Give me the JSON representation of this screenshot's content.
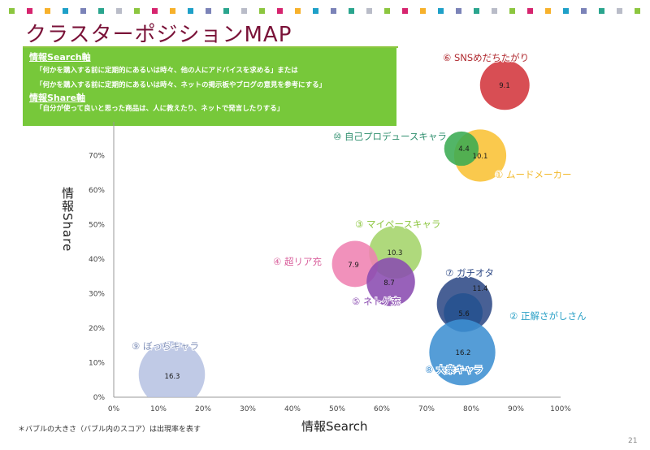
{
  "page": {
    "title": "クラスターポジションMAP",
    "page_number": "21",
    "footnote": "＊バブルの大きさ（バブル内のスコア）は出現率を表す",
    "decor_dot_colors": [
      "#8cc63f",
      "#d6246e",
      "#f7b12b",
      "#1ea0c8",
      "#7b83b8",
      "#2aa58e",
      "#b9bcc8"
    ]
  },
  "definitions": {
    "search_axis_title": "情報Search軸",
    "search_axis_lines": [
      "「何かを購入する前に定期的にあるいは時々、他の人にアドバイスを求める」または",
      "「何かを購入する前に定期的にあるいは時々、ネットの掲示板やブログの意見を参考にする」"
    ],
    "share_axis_title": "情報Share軸",
    "share_axis_lines": [
      "「自分が使って良いと思った商品は、人に教えたり、ネットで発言したりする」"
    ]
  },
  "chart_data": {
    "type": "bubble",
    "title": "クラスターポジションMAP",
    "xlabel": "情報Search",
    "ylabel": "情報Share",
    "xlim": [
      0,
      100
    ],
    "ylim": [
      0,
      80
    ],
    "x_ticks": [
      "0%",
      "10%",
      "20%",
      "30%",
      "40%",
      "50%",
      "60%",
      "70%",
      "80%",
      "90%",
      "100%"
    ],
    "y_ticks": [
      "0%",
      "10%",
      "20%",
      "30%",
      "40%",
      "50%",
      "60%",
      "70%"
    ],
    "size_meaning": "出現率 (%)",
    "series": [
      {
        "id": "⑥",
        "name": "SNSめだちたがり",
        "x": 87.5,
        "y": 90.4,
        "size": 9.1,
        "color": "#d3363c",
        "label_color": "#b02a30"
      },
      {
        "id": "①",
        "name": "ムードメーカー",
        "x": 82.0,
        "y": 70.0,
        "size": 10.1,
        "color": "#f9c234",
        "label_color": "#f2b92a"
      },
      {
        "id": "⑩",
        "name": "自己プロデュースキャラ",
        "x": 77.8,
        "y": 72.0,
        "size": 4.4,
        "color": "#3aab52",
        "label_color": "#2f8f6e"
      },
      {
        "id": "③",
        "name": "マイペースキャラ",
        "x": 63.0,
        "y": 42.0,
        "size": 10.3,
        "color": "#a4d46a",
        "label_color": "#8cc63f"
      },
      {
        "id": "④",
        "name": "超リア充",
        "x": 54.0,
        "y": 38.6,
        "size": 7.9,
        "color": "#ef82b2",
        "label_color": "#d9609c"
      },
      {
        "id": "⑤",
        "name": "ネトゲ充",
        "x": 62.0,
        "y": 33.4,
        "size": 8.7,
        "color": "#8a4bb0",
        "label_color": "#8a4bb0"
      },
      {
        "id": "⑦",
        "name": "ガチオタ",
        "x": 78.5,
        "y": 27.0,
        "size": 11.4,
        "color": "#2f4a86",
        "label_color": "#2f4a86"
      },
      {
        "id": "②",
        "name": "正解さがしさん",
        "x": 78.2,
        "y": 24.5,
        "size": 5.6,
        "color": "#1f4f8f",
        "label_color": "#2aa0c6"
      },
      {
        "id": "⑧",
        "name": "大衆キャラ",
        "x": 78.0,
        "y": 13.0,
        "size": 16.2,
        "color": "#3d8fd2",
        "label_color": "#3d8fd2"
      },
      {
        "id": "⑨",
        "name": "ぼっちキャラ",
        "x": 13.0,
        "y": 6.6,
        "size": 16.3,
        "color": "#b7c3e2",
        "label_color": "#7f8fb8"
      }
    ]
  }
}
